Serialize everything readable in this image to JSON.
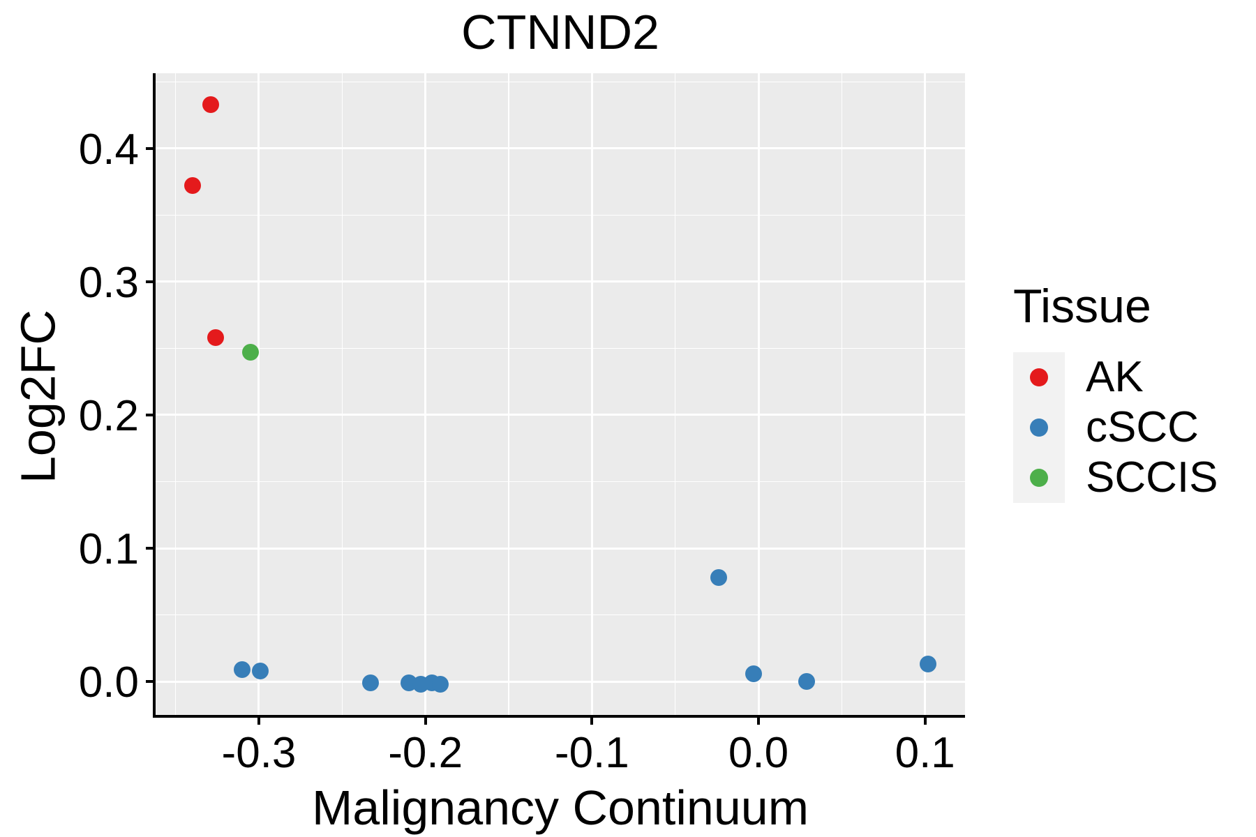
{
  "title": "CTNND2",
  "colors": {
    "ak_red": "#E41A1C",
    "cscc_blue": "#377EB8",
    "sccis_green": "#4DAF4A",
    "panel_background": "#EBEBEB",
    "legend_key_background": "#F2F2F2",
    "gridline": "#FFFFFF",
    "axis_text": "#000000"
  },
  "chart_data": {
    "type": "scatter",
    "title": "CTNND2",
    "xlabel": "Malignancy Continuum",
    "ylabel": "Log2FC",
    "xlim": [
      -0.362,
      0.124
    ],
    "ylim": [
      -0.0251,
      0.4565
    ],
    "x_ticks": [
      -0.3,
      -0.2,
      -0.1,
      0.0,
      0.1
    ],
    "x_tick_labels": [
      "-0.3",
      "-0.2",
      "-0.1",
      "0.0",
      "0.1"
    ],
    "x_minor_ticks": [
      -0.35,
      -0.25,
      -0.15,
      -0.05,
      0.05
    ],
    "y_ticks": [
      0.0,
      0.1,
      0.2,
      0.3,
      0.4
    ],
    "y_tick_labels": [
      "0.0",
      "0.1",
      "0.2",
      "0.3",
      "0.4"
    ],
    "y_minor_ticks": [
      0.05,
      0.15,
      0.25,
      0.35,
      0.45
    ],
    "grid": true,
    "legend_position": "right",
    "legend_title": "Tissue",
    "series": [
      {
        "name": "AK",
        "color": "#E41A1C",
        "points": [
          [
            -0.329,
            0.433
          ],
          [
            -0.34,
            0.372
          ],
          [
            -0.326,
            0.258
          ]
        ]
      },
      {
        "name": "cSCC",
        "color": "#377EB8",
        "points": [
          [
            -0.31,
            0.009
          ],
          [
            -0.299,
            0.008
          ],
          [
            -0.233,
            -0.001
          ],
          [
            -0.21,
            -0.001
          ],
          [
            -0.203,
            -0.002
          ],
          [
            -0.196,
            -0.001
          ],
          [
            -0.191,
            -0.002
          ],
          [
            -0.024,
            0.078
          ],
          [
            -0.003,
            0.006
          ],
          [
            0.029,
            0.0
          ],
          [
            0.102,
            0.013
          ]
        ]
      },
      {
        "name": "SCCIS",
        "color": "#4DAF4A",
        "points": [
          [
            -0.305,
            0.247
          ]
        ]
      }
    ]
  }
}
